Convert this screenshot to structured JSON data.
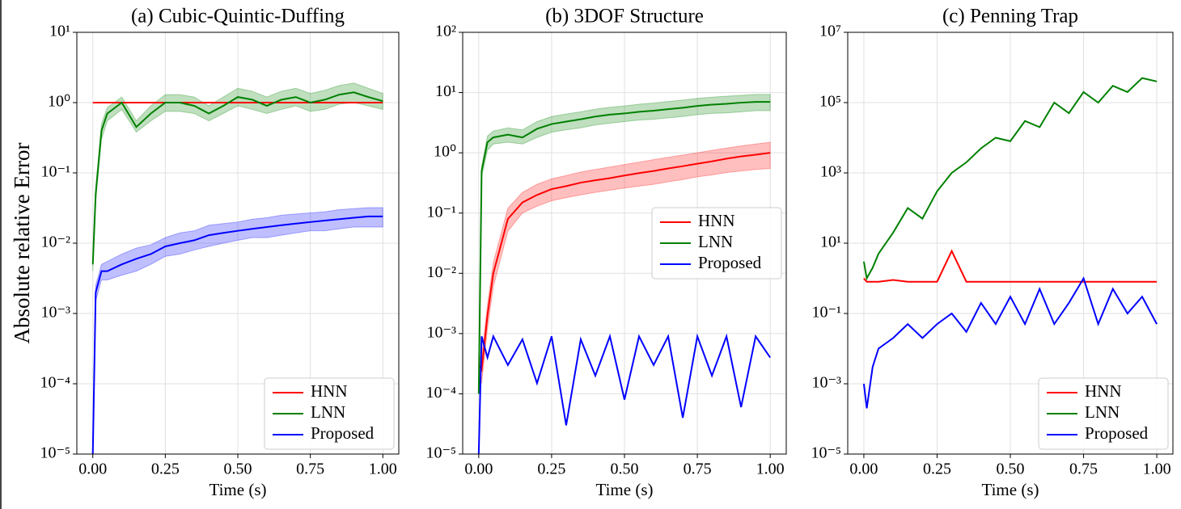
{
  "chart_data": [
    {
      "type": "line",
      "title": "(a) Cubic-Quintic-Duffing",
      "xlabel": "Time (s)",
      "ylabel": "Absolute relative Error",
      "log_y": true,
      "grid": true,
      "legend": "lower right",
      "xlim": [
        -0.055,
        1.055
      ],
      "ylim": [
        1e-05,
        10
      ],
      "xticks": [
        {
          "value": 0,
          "label": "0.00"
        },
        {
          "value": 0.25,
          "label": "0.25"
        },
        {
          "value": 0.5,
          "label": "0.50"
        },
        {
          "value": 0.75,
          "label": "0.75"
        },
        {
          "value": 1,
          "label": "1.00"
        }
      ],
      "yticks": [
        {
          "value": 1e-05,
          "label": "10⁻⁵"
        },
        {
          "value": 0.0001,
          "label": "10⁻⁴"
        },
        {
          "value": 0.001,
          "label": "10⁻³"
        },
        {
          "value": 0.01,
          "label": "10⁻²"
        },
        {
          "value": 0.1,
          "label": "10⁻¹"
        },
        {
          "value": 1,
          "label": "10⁰"
        },
        {
          "value": 10,
          "label": "10¹"
        }
      ],
      "x": [
        0,
        0.01,
        0.03,
        0.05,
        0.1,
        0.15,
        0.2,
        0.25,
        0.3,
        0.35,
        0.4,
        0.45,
        0.5,
        0.55,
        0.6,
        0.65,
        0.7,
        0.75,
        0.8,
        0.85,
        0.9,
        0.95,
        1.0
      ],
      "series": [
        {
          "name": "HNN",
          "color": "#ff0000",
          "values": [
            1,
            1,
            1,
            1,
            1,
            1,
            1,
            1,
            1,
            1,
            1,
            1,
            1,
            1,
            1,
            1,
            1,
            1,
            1,
            1,
            1,
            1,
            1
          ]
        },
        {
          "name": "LNN",
          "color": "#008000",
          "values": [
            0.005,
            0.05,
            0.4,
            0.7,
            1.0,
            0.45,
            0.7,
            1.0,
            1.0,
            0.9,
            0.7,
            0.9,
            1.2,
            1.1,
            0.9,
            1.1,
            1.2,
            1.0,
            1.1,
            1.3,
            1.4,
            1.2,
            1.05
          ],
          "lower": [
            0.004,
            0.04,
            0.3,
            0.55,
            0.8,
            0.38,
            0.55,
            0.75,
            0.75,
            0.7,
            0.55,
            0.7,
            0.9,
            0.8,
            0.7,
            0.8,
            0.9,
            0.75,
            0.8,
            0.95,
            1.0,
            0.9,
            0.8
          ],
          "upper": [
            0.006,
            0.06,
            0.5,
            0.85,
            1.2,
            0.55,
            0.9,
            1.3,
            1.3,
            1.2,
            0.9,
            1.2,
            1.6,
            1.45,
            1.2,
            1.45,
            1.6,
            1.35,
            1.5,
            1.75,
            1.9,
            1.6,
            1.35
          ]
        },
        {
          "name": "Proposed",
          "color": "#0000ff",
          "values": [
            1e-05,
            0.002,
            0.004,
            0.004,
            0.005,
            0.006,
            0.007,
            0.009,
            0.01,
            0.011,
            0.013,
            0.014,
            0.015,
            0.016,
            0.017,
            0.018,
            0.019,
            0.02,
            0.021,
            0.022,
            0.023,
            0.024,
            0.024
          ],
          "lower": [
            1e-05,
            0.0015,
            0.003,
            0.003,
            0.0035,
            0.004,
            0.005,
            0.0065,
            0.007,
            0.008,
            0.009,
            0.01,
            0.011,
            0.012,
            0.012,
            0.013,
            0.014,
            0.015,
            0.015,
            0.016,
            0.017,
            0.017,
            0.017
          ],
          "upper": [
            1e-05,
            0.0025,
            0.005,
            0.0055,
            0.007,
            0.0085,
            0.0095,
            0.012,
            0.014,
            0.015,
            0.018,
            0.019,
            0.02,
            0.022,
            0.023,
            0.025,
            0.026,
            0.027,
            0.028,
            0.03,
            0.031,
            0.032,
            0.032
          ]
        }
      ]
    },
    {
      "type": "line",
      "title": "(b) 3DOF Structure",
      "xlabel": "Time (s)",
      "log_y": true,
      "grid": true,
      "legend": "center right",
      "xlim": [
        -0.055,
        1.055
      ],
      "ylim": [
        1e-05,
        100
      ],
      "xticks": [
        {
          "value": 0,
          "label": "0.00"
        },
        {
          "value": 0.25,
          "label": "0.25"
        },
        {
          "value": 0.5,
          "label": "0.50"
        },
        {
          "value": 0.75,
          "label": "0.75"
        },
        {
          "value": 1,
          "label": "1.00"
        }
      ],
      "yticks": [
        {
          "value": 1e-05,
          "label": "10⁻⁵"
        },
        {
          "value": 0.0001,
          "label": "10⁻⁴"
        },
        {
          "value": 0.001,
          "label": "10⁻³"
        },
        {
          "value": 0.01,
          "label": "10⁻²"
        },
        {
          "value": 0.1,
          "label": "10⁻¹"
        },
        {
          "value": 1,
          "label": "10⁰"
        },
        {
          "value": 10,
          "label": "10¹"
        },
        {
          "value": 100,
          "label": "10²"
        }
      ],
      "x": [
        0,
        0.01,
        0.03,
        0.05,
        0.1,
        0.15,
        0.2,
        0.25,
        0.3,
        0.35,
        0.4,
        0.45,
        0.5,
        0.55,
        0.6,
        0.65,
        0.7,
        0.75,
        0.8,
        0.85,
        0.9,
        0.95,
        1.0
      ],
      "series": [
        {
          "name": "HNN",
          "color": "#ff0000",
          "values": [
            0.0003,
            0.00025,
            0.002,
            0.01,
            0.08,
            0.15,
            0.2,
            0.25,
            0.28,
            0.32,
            0.35,
            0.38,
            0.42,
            0.46,
            0.5,
            0.55,
            0.6,
            0.66,
            0.72,
            0.8,
            0.87,
            0.93,
            1.0
          ],
          "lower": [
            0.0002,
            0.00015,
            0.0012,
            0.006,
            0.05,
            0.1,
            0.13,
            0.16,
            0.18,
            0.2,
            0.22,
            0.24,
            0.26,
            0.28,
            0.3,
            0.33,
            0.36,
            0.4,
            0.43,
            0.47,
            0.5,
            0.53,
            0.55
          ],
          "upper": [
            0.0004,
            0.0004,
            0.003,
            0.015,
            0.12,
            0.22,
            0.3,
            0.37,
            0.42,
            0.48,
            0.53,
            0.58,
            0.64,
            0.7,
            0.77,
            0.84,
            0.92,
            1.0,
            1.1,
            1.2,
            1.3,
            1.4,
            1.5
          ]
        },
        {
          "name": "LNN",
          "color": "#008000",
          "values": [
            0.0001,
            0.5,
            1.5,
            1.8,
            2.0,
            1.8,
            2.5,
            3.0,
            3.3,
            3.6,
            4.0,
            4.3,
            4.5,
            4.8,
            5.0,
            5.3,
            5.6,
            6.0,
            6.3,
            6.5,
            6.8,
            7.0,
            7.0
          ],
          "lower": [
            0.0001,
            0.4,
            1.1,
            1.4,
            1.5,
            1.4,
            1.8,
            2.2,
            2.4,
            2.6,
            2.9,
            3.1,
            3.3,
            3.5,
            3.6,
            3.8,
            4.0,
            4.3,
            4.5,
            4.6,
            4.8,
            5.0,
            5.0
          ],
          "upper": [
            0.0001,
            0.6,
            1.9,
            2.3,
            2.6,
            2.4,
            3.3,
            4.0,
            4.4,
            4.8,
            5.3,
            5.7,
            6.0,
            6.4,
            6.7,
            7.1,
            7.5,
            8.0,
            8.4,
            8.7,
            9.0,
            9.3,
            9.3
          ]
        },
        {
          "name": "Proposed",
          "color": "#0000ff",
          "values": [
            1e-05,
            0.0009,
            0.0004,
            0.0009,
            0.0003,
            0.0008,
            0.00015,
            0.0009,
            3e-05,
            0.0008,
            0.0002,
            0.0009,
            8e-05,
            0.0009,
            0.0003,
            0.0009,
            4e-05,
            0.0009,
            0.0002,
            0.0009,
            6e-05,
            0.0009,
            0.0004
          ]
        }
      ]
    },
    {
      "type": "line",
      "title": "(c) Penning Trap",
      "xlabel": "Time (s)",
      "log_y": true,
      "grid": true,
      "legend": "lower right",
      "xlim": [
        -0.055,
        1.055
      ],
      "ylim": [
        1e-05,
        10000000
      ],
      "xticks": [
        {
          "value": 0,
          "label": "0.00"
        },
        {
          "value": 0.25,
          "label": "0.25"
        },
        {
          "value": 0.5,
          "label": "0.50"
        },
        {
          "value": 0.75,
          "label": "0.75"
        },
        {
          "value": 1,
          "label": "1.00"
        }
      ],
      "yticks": [
        {
          "value": 1e-05,
          "label": "10⁻⁵"
        },
        {
          "value": 0.001,
          "label": "10⁻³"
        },
        {
          "value": 0.1,
          "label": "10⁻¹"
        },
        {
          "value": 10,
          "label": "10¹"
        },
        {
          "value": 1000,
          "label": "10³"
        },
        {
          "value": 100000,
          "label": "10⁵"
        },
        {
          "value": 10000000,
          "label": "10⁷"
        }
      ],
      "x": [
        0,
        0.01,
        0.03,
        0.05,
        0.1,
        0.15,
        0.2,
        0.25,
        0.3,
        0.35,
        0.4,
        0.45,
        0.5,
        0.55,
        0.6,
        0.65,
        0.7,
        0.75,
        0.8,
        0.85,
        0.9,
        0.95,
        1.0
      ],
      "series": [
        {
          "name": "HNN",
          "color": "#ff0000",
          "values": [
            1,
            0.8,
            0.8,
            0.8,
            0.9,
            0.8,
            0.8,
            0.8,
            6,
            0.8,
            0.8,
            0.8,
            0.8,
            0.8,
            0.8,
            0.8,
            0.8,
            0.8,
            0.8,
            0.8,
            0.8,
            0.8,
            0.8
          ]
        },
        {
          "name": "LNN",
          "color": "#008000",
          "values": [
            3,
            1,
            2,
            5,
            20,
            100,
            50,
            300,
            1000,
            2000,
            5000,
            10000,
            8000,
            30000,
            20000,
            100000,
            50000,
            200000,
            100000,
            300000,
            200000,
            500000,
            400000
          ]
        },
        {
          "name": "Proposed",
          "color": "#0000ff",
          "values": [
            0.001,
            0.0002,
            0.003,
            0.01,
            0.02,
            0.05,
            0.02,
            0.05,
            0.1,
            0.03,
            0.2,
            0.05,
            0.3,
            0.05,
            0.5,
            0.05,
            0.2,
            1,
            0.05,
            0.5,
            0.1,
            0.3,
            0.05
          ]
        }
      ]
    }
  ]
}
